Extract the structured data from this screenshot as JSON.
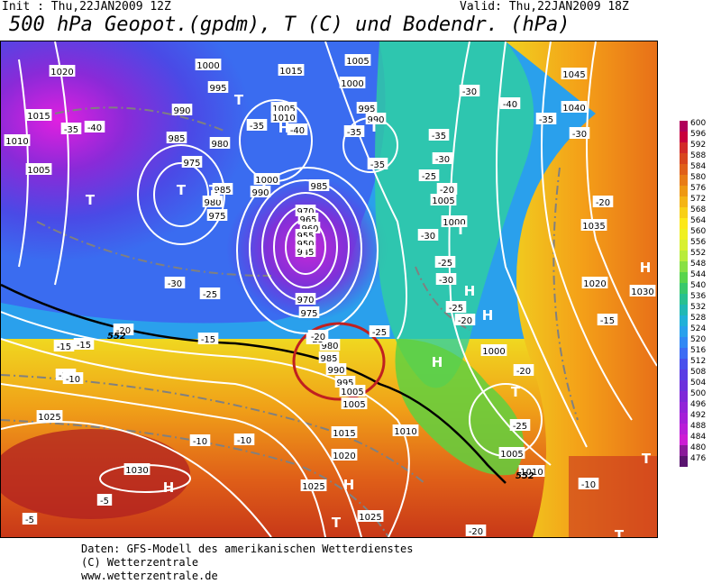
{
  "header": {
    "init": "Init : Thu,22JAN2009 12Z",
    "valid": "Valid: Thu,22JAN2009 18Z",
    "title": "500 hPa Geopot.(gpdm), T (C) und Bodendr. (hPa)"
  },
  "map": {
    "pressure_labels": [
      {
        "v": "1020"
      },
      {
        "v": "1000"
      },
      {
        "v": "1015"
      },
      {
        "v": "1005"
      },
      {
        "v": "1045"
      },
      {
        "v": "1015"
      },
      {
        "v": "995"
      },
      {
        "v": "1000"
      },
      {
        "v": "1040"
      },
      {
        "v": "1010"
      },
      {
        "v": "990"
      },
      {
        "v": "1005"
      },
      {
        "v": "995"
      },
      {
        "v": "1010"
      },
      {
        "v": "990"
      },
      {
        "v": "1005"
      },
      {
        "v": "985"
      },
      {
        "v": "980"
      },
      {
        "v": "975"
      },
      {
        "v": "985"
      },
      {
        "v": "1000"
      },
      {
        "v": "990"
      },
      {
        "v": "985"
      },
      {
        "v": "980"
      },
      {
        "v": "975"
      },
      {
        "v": "1005"
      },
      {
        "v": "970"
      },
      {
        "v": "965"
      },
      {
        "v": "960"
      },
      {
        "v": "955"
      },
      {
        "v": "950"
      },
      {
        "v": "945"
      },
      {
        "v": "1000"
      },
      {
        "v": "1035"
      },
      {
        "v": "970"
      },
      {
        "v": "975"
      },
      {
        "v": "1020"
      },
      {
        "v": "1030"
      },
      {
        "v": "980"
      },
      {
        "v": "985"
      },
      {
        "v": "990"
      },
      {
        "v": "995"
      },
      {
        "v": "1005"
      },
      {
        "v": "1000"
      },
      {
        "v": "1005"
      },
      {
        "v": "1025"
      },
      {
        "v": "1015"
      },
      {
        "v": "1010"
      },
      {
        "v": "1020"
      },
      {
        "v": "1005"
      },
      {
        "v": "1010"
      },
      {
        "v": "1030"
      },
      {
        "v": "1025"
      },
      {
        "v": "1025"
      }
    ],
    "temp_labels": [
      {
        "v": "-35"
      },
      {
        "v": "-40"
      },
      {
        "v": "-35"
      },
      {
        "v": "-40"
      },
      {
        "v": "-35"
      },
      {
        "v": "-30"
      },
      {
        "v": "-35"
      },
      {
        "v": "-40"
      },
      {
        "v": "-35"
      },
      {
        "v": "-35"
      },
      {
        "v": "-30"
      },
      {
        "v": "-25"
      },
      {
        "v": "-20"
      },
      {
        "v": "-30"
      },
      {
        "v": "-25"
      },
      {
        "v": "-30"
      },
      {
        "v": "-25"
      },
      {
        "v": "-30"
      },
      {
        "v": "-25"
      },
      {
        "v": "-20"
      },
      {
        "v": "-15"
      },
      {
        "v": "-15"
      },
      {
        "v": "-20"
      },
      {
        "v": "-15"
      },
      {
        "v": "-25"
      },
      {
        "v": "-25"
      },
      {
        "v": "-20"
      },
      {
        "v": "-15"
      },
      {
        "v": "-10"
      },
      {
        "v": "-10"
      },
      {
        "v": "-10"
      },
      {
        "v": "-5"
      },
      {
        "v": "-5"
      },
      {
        "v": "-10"
      },
      {
        "v": "-15"
      },
      {
        "v": "-20"
      },
      {
        "v": "-20"
      },
      {
        "v": "-25"
      },
      {
        "v": "-30"
      },
      {
        "v": "-20"
      }
    ],
    "h_markers": [
      "H",
      "H",
      "H",
      "H",
      "H",
      "H",
      "H",
      "H"
    ],
    "t_markers": [
      "T",
      "T",
      "T",
      "T",
      "T",
      "T",
      "T",
      "T",
      "T",
      "T",
      "T"
    ],
    "contour_552_labels": [
      "552",
      "552"
    ]
  },
  "scale": {
    "values": [
      "600",
      "596",
      "592",
      "588",
      "584",
      "580",
      "576",
      "572",
      "568",
      "564",
      "560",
      "556",
      "552",
      "548",
      "544",
      "540",
      "536",
      "532",
      "528",
      "524",
      "520",
      "516",
      "512",
      "508",
      "504",
      "500",
      "496",
      "492",
      "488",
      "484",
      "480",
      "476"
    ],
    "colors": [
      "#b0005a",
      "#c8003c",
      "#d22a28",
      "#d8461e",
      "#e0601a",
      "#e87c16",
      "#ee9812",
      "#f4b414",
      "#f8d016",
      "#fce818",
      "#f0f020",
      "#d8f030",
      "#b8ec3c",
      "#88e044",
      "#58d44c",
      "#38c86c",
      "#28c090",
      "#20b8b4",
      "#20b0d8",
      "#28a0ec",
      "#3088f4",
      "#3c6cf4",
      "#4850ec",
      "#5a3ce4",
      "#6c30dc",
      "#7e28d8",
      "#9224d8",
      "#a420d8",
      "#b81ed8",
      "#cc1cd4",
      "#8a1a9a",
      "#5a1470"
    ]
  },
  "footer": {
    "line1": "Daten: GFS-Modell des amerikanischen Wetterdienstes",
    "line2": "(C) Wetterzentrale",
    "line3": "www.wetterzentrale.de"
  }
}
